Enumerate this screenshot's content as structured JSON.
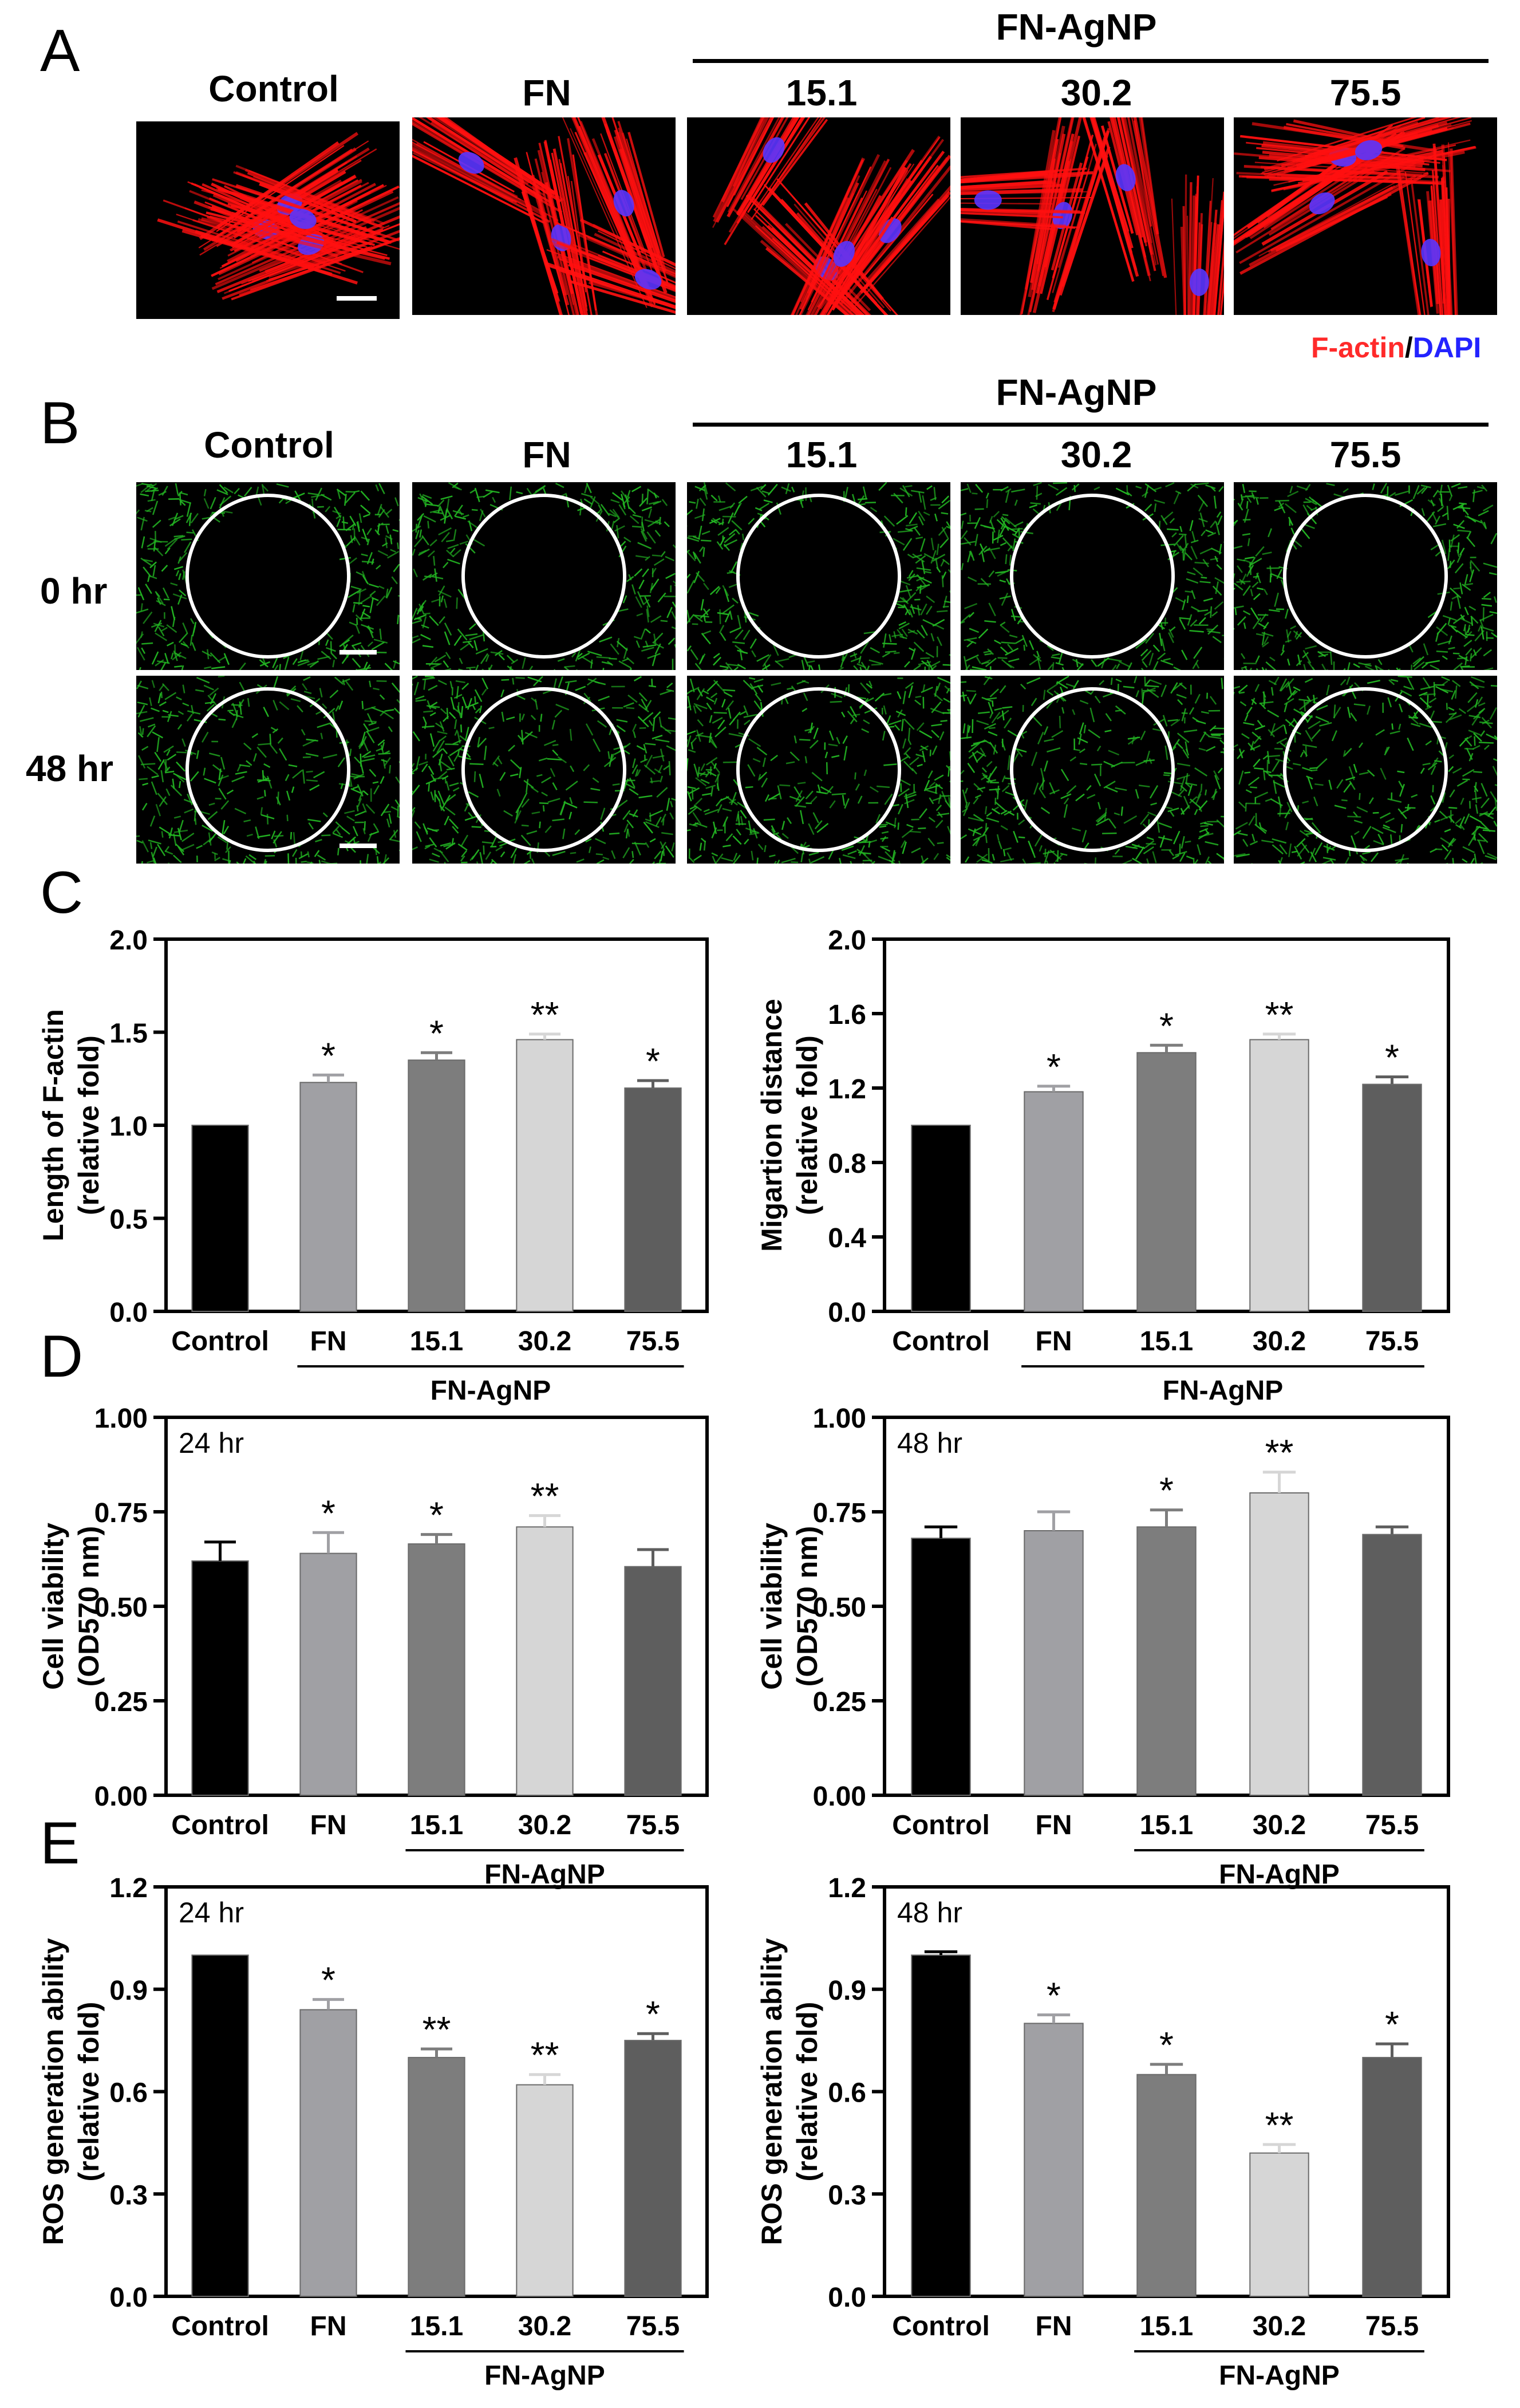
{
  "panels": {
    "A": "A",
    "B": "B",
    "C": "C",
    "D": "D",
    "E": "E"
  },
  "groups": [
    "Control",
    "FN",
    "15.1",
    "30.2",
    "75.5"
  ],
  "group_label": "FN-AgNP",
  "rows_B": {
    "r0": "0 hr",
    "r1": "48 hr"
  },
  "legend": {
    "factin": "F-actin",
    "slash": "/",
    "dapi": "DAPI"
  },
  "colors": {
    "bars": [
      "#000000",
      "#a0a0a4",
      "#7d7d7d",
      "#d6d6d6",
      "#5e5e5e"
    ],
    "actin_red": "#ff1010",
    "nucleus_blue": "#5a35ff",
    "cell_green": "#22b322",
    "circle": "#ffffff"
  },
  "chart_data": [
    {
      "panel": "C",
      "type": "bar",
      "ylabel": "Length of F-actin",
      "ylabel2": "(relative fold)",
      "categories": [
        "Control",
        "FN",
        "15.1",
        "30.2",
        "75.5"
      ],
      "values": [
        1.0,
        1.23,
        1.35,
        1.46,
        1.2
      ],
      "errors": [
        0,
        0.04,
        0.04,
        0.03,
        0.04
      ],
      "significance": [
        "",
        "*",
        "*",
        "**",
        "*"
      ],
      "ylim": [
        0,
        2.0
      ],
      "yticks": [
        "0.0",
        "0.5",
        "1.0",
        "1.5",
        "2.0"
      ],
      "note": ""
    },
    {
      "panel": "C",
      "type": "bar",
      "ylabel": "Migartion distance",
      "ylabel2": "(relative fold)",
      "categories": [
        "Control",
        "FN",
        "15.1",
        "30.2",
        "75.5"
      ],
      "values": [
        1.0,
        1.18,
        1.39,
        1.46,
        1.22
      ],
      "errors": [
        0,
        0.03,
        0.04,
        0.03,
        0.04
      ],
      "significance": [
        "",
        "*",
        "*",
        "**",
        "*"
      ],
      "ylim": [
        0,
        2.0
      ],
      "yticks": [
        "0.0",
        "0.4",
        "0.8",
        "1.2",
        "1.6",
        "2.0"
      ],
      "note": ""
    },
    {
      "panel": "D",
      "type": "bar",
      "ylabel": "Cell viability",
      "ylabel2": "(OD570 nm)",
      "categories": [
        "Control",
        "FN",
        "15.1",
        "30.2",
        "75.5"
      ],
      "values": [
        0.62,
        0.64,
        0.665,
        0.71,
        0.605
      ],
      "errors": [
        0.05,
        0.055,
        0.025,
        0.03,
        0.045
      ],
      "significance": [
        "",
        "*",
        "*",
        "**",
        ""
      ],
      "ylim": [
        0,
        1.0
      ],
      "yticks": [
        "0.00",
        "0.25",
        "0.50",
        "0.75",
        "1.00"
      ],
      "note": "24 hr"
    },
    {
      "panel": "D",
      "type": "bar",
      "ylabel": "Cell viability",
      "ylabel2": "(OD570 nm)",
      "categories": [
        "Control",
        "FN",
        "15.1",
        "30.2",
        "75.5"
      ],
      "values": [
        0.68,
        0.7,
        0.71,
        0.8,
        0.69
      ],
      "errors": [
        0.03,
        0.05,
        0.045,
        0.055,
        0.02
      ],
      "significance": [
        "",
        "",
        "*",
        "**",
        ""
      ],
      "ylim": [
        0,
        1.0
      ],
      "yticks": [
        "0.00",
        "0.25",
        "0.50",
        "0.75",
        "1.00"
      ],
      "note": "48 hr"
    },
    {
      "panel": "E",
      "type": "bar",
      "ylabel": "ROS generation ability",
      "ylabel2": "(relative fold)",
      "categories": [
        "Control",
        "FN",
        "15.1",
        "30.2",
        "75.5"
      ],
      "values": [
        1.0,
        0.84,
        0.7,
        0.62,
        0.75
      ],
      "errors": [
        0,
        0.03,
        0.025,
        0.03,
        0.02
      ],
      "significance": [
        "",
        "*",
        "**",
        "**",
        "*"
      ],
      "ylim": [
        0,
        1.2
      ],
      "yticks": [
        "0.0",
        "0.3",
        "0.6",
        "0.9",
        "1.2"
      ],
      "note": "24 hr"
    },
    {
      "panel": "E",
      "type": "bar",
      "ylabel": "ROS generation ability",
      "ylabel2": "(relative fold)",
      "categories": [
        "Control",
        "FN",
        "15.1",
        "30.2",
        "75.5"
      ],
      "values": [
        1.0,
        0.8,
        0.65,
        0.42,
        0.7
      ],
      "errors": [
        0.01,
        0.025,
        0.03,
        0.025,
        0.04
      ],
      "significance": [
        "",
        "*",
        "*",
        "**",
        "*"
      ],
      "ylim": [
        0,
        1.2
      ],
      "yticks": [
        "0.0",
        "0.3",
        "0.6",
        "0.9",
        "1.2"
      ],
      "note": "48 hr"
    }
  ]
}
